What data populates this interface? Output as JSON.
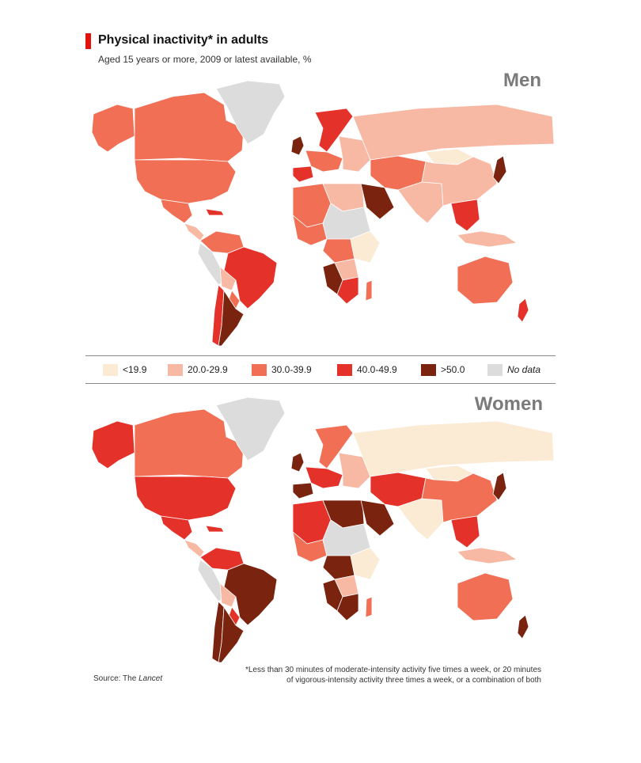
{
  "header": {
    "title": "Physical inactivity* in adults",
    "subtitle": "Aged 15 years or more, 2009 or latest available, %"
  },
  "panels": [
    {
      "label": "Men"
    },
    {
      "label": "Women"
    }
  ],
  "legend": {
    "items": [
      {
        "label": "<19.9",
        "color": "#fcebd4"
      },
      {
        "label": "20.0-29.9",
        "color": "#f8b9a4"
      },
      {
        "label": "30.0-39.9",
        "color": "#f06f55"
      },
      {
        "label": "40.0-49.9",
        "color": "#e4322b"
      },
      {
        "label": ">50.0",
        "color": "#7a2410"
      },
      {
        "label": "No data",
        "color": "#dcdcdc"
      }
    ]
  },
  "regions": {
    "men": {
      "alaska": "30.0-39.9",
      "canada": "30.0-39.9",
      "greenland": "No data",
      "usa": "30.0-39.9",
      "mexico": "30.0-39.9",
      "central_america": "20.0-29.9",
      "caribbean": "40.0-49.9",
      "colombia_venezuela": "30.0-39.9",
      "ecuador_peru": "No data",
      "brazil": "40.0-49.9",
      "bolivia": "20.0-29.9",
      "paraguay": "30.0-39.9",
      "chile": "40.0-49.9",
      "argentina": "> 50.0",
      "uk_ireland": "> 50.0",
      "scandinavia": "40.0-49.9",
      "western_europe": "30.0-39.9",
      "iberia": "40.0-49.9",
      "eastern_europe": "20.0-29.9",
      "russia": "20.0-29.9",
      "north_africa_west": "30.0-39.9",
      "libya_egypt": "20.0-29.9",
      "west_africa": "30.0-39.9",
      "sahel": "No data",
      "central_africa": "30.0-39.9",
      "east_africa": "<19.9",
      "dr_congo": "20.0-29.9",
      "southern_africa_west": "> 50.0",
      "south_africa": "40.0-49.9",
      "madagascar": "30.0-39.9",
      "arabia": "> 50.0",
      "iran_central_asia": "30.0-39.9",
      "south_asia": "20.0-29.9",
      "mongolia": "<19.9",
      "china": "20.0-29.9",
      "japan": "> 50.0",
      "se_asia": "40.0-49.9",
      "indonesia": "20.0-29.9",
      "australia": "30.0-39.9",
      "new_zealand": "40.0-49.9"
    },
    "women": {
      "alaska": "40.0-49.9",
      "canada": "30.0-39.9",
      "greenland": "No data",
      "usa": "40.0-49.9",
      "mexico": "40.0-49.9",
      "central_america": "20.0-29.9",
      "caribbean": "40.0-49.9",
      "colombia_venezuela": "40.0-49.9",
      "ecuador_peru": "No data",
      "brazil": "> 50.0",
      "bolivia": "20.0-29.9",
      "paraguay": "40.0-49.9",
      "chile": "> 50.0",
      "argentina": "> 50.0",
      "uk_ireland": "> 50.0",
      "scandinavia": "30.0-39.9",
      "western_europe": "40.0-49.9",
      "iberia": "> 50.0",
      "eastern_europe": "20.0-29.9",
      "russia": "<19.9",
      "north_africa_west": "40.0-49.9",
      "libya_egypt": "> 50.0",
      "west_africa": "30.0-39.9",
      "sahel": "No data",
      "central_africa": "> 50.0",
      "east_africa": "<19.9",
      "dr_congo": "20.0-29.9",
      "southern_africa_west": "> 50.0",
      "south_africa": "> 50.0",
      "madagascar": "30.0-39.9",
      "arabia": "> 50.0",
      "iran_central_asia": "40.0-49.9",
      "south_asia": "<19.9",
      "mongolia": "<19.9",
      "china": "30.0-39.9",
      "japan": "> 50.0",
      "se_asia": "40.0-49.9",
      "indonesia": "20.0-29.9",
      "australia": "30.0-39.9",
      "new_zealand": "> 50.0"
    }
  },
  "footer": {
    "source_prefix": "Source: The ",
    "source_italic": "Lancet",
    "footnote_line1": "*Less than 30 minutes of moderate-intensity activity five times a week, or 20 minutes",
    "footnote_line2": "of vigorous-intensity activity three times a week, or a combination of both"
  }
}
